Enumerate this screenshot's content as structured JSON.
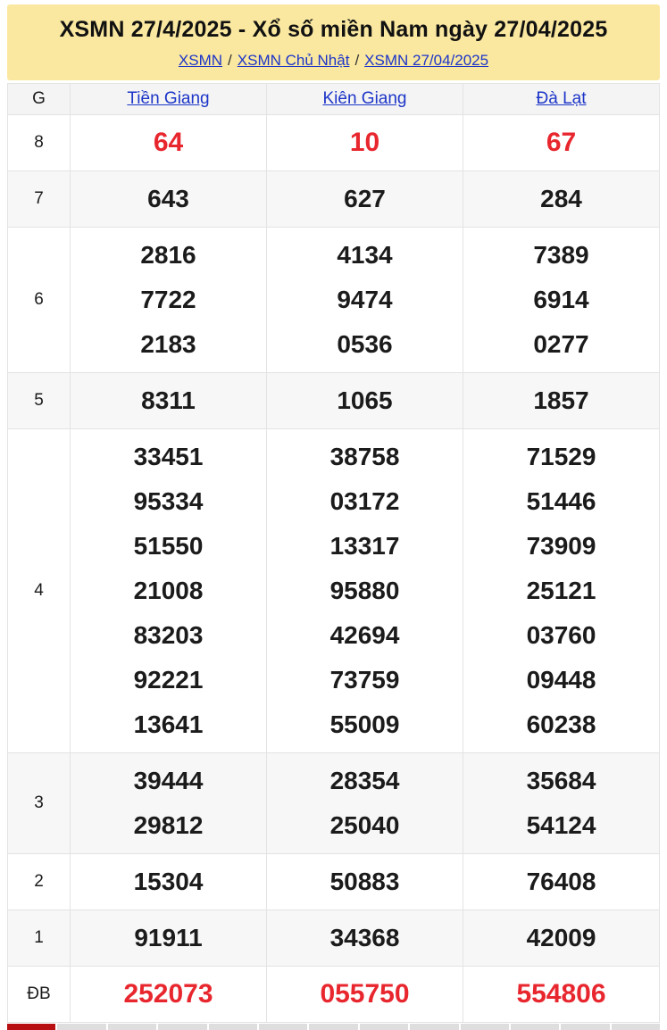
{
  "page": {
    "title": "XSMN 27/4/2025 - Xổ số miền Nam ngày 27/04/2025",
    "breadcrumb": [
      {
        "label": "XSMN"
      },
      {
        "label": "XSMN Chủ Nhật"
      },
      {
        "label": "XSMN 27/04/2025"
      }
    ],
    "breadcrumb_separator": "/"
  },
  "colors": {
    "header_bg": "#FAE8A0",
    "link_blue": "#1d35c8",
    "prize_red": "#e8262e",
    "strip_red": "#b80f12",
    "alt_row_bg": "#f7f7f7",
    "border": "#e3e3e3"
  },
  "table": {
    "g_header": "G",
    "provinces": [
      "Tiền Giang",
      "Kiên Giang",
      "Đà Lạt"
    ],
    "rows": [
      {
        "prize": "8",
        "highlight": true,
        "cells": [
          [
            "64"
          ],
          [
            "10"
          ],
          [
            "67"
          ]
        ]
      },
      {
        "prize": "7",
        "highlight": false,
        "cells": [
          [
            "643"
          ],
          [
            "627"
          ],
          [
            "284"
          ]
        ]
      },
      {
        "prize": "6",
        "highlight": false,
        "cells": [
          [
            "2816",
            "7722",
            "2183"
          ],
          [
            "4134",
            "9474",
            "0536"
          ],
          [
            "7389",
            "6914",
            "0277"
          ]
        ]
      },
      {
        "prize": "5",
        "highlight": false,
        "cells": [
          [
            "8311"
          ],
          [
            "1065"
          ],
          [
            "1857"
          ]
        ]
      },
      {
        "prize": "4",
        "highlight": false,
        "cells": [
          [
            "33451",
            "95334",
            "51550",
            "21008",
            "83203",
            "92221",
            "13641"
          ],
          [
            "38758",
            "03172",
            "13317",
            "95880",
            "42694",
            "73759",
            "55009"
          ],
          [
            "71529",
            "51446",
            "73909",
            "25121",
            "03760",
            "09448",
            "60238"
          ]
        ]
      },
      {
        "prize": "3",
        "highlight": false,
        "cells": [
          [
            "39444",
            "29812"
          ],
          [
            "28354",
            "25040"
          ],
          [
            "35684",
            "54124"
          ]
        ]
      },
      {
        "prize": "2",
        "highlight": false,
        "cells": [
          [
            "15304"
          ],
          [
            "50883"
          ],
          [
            "76408"
          ]
        ]
      },
      {
        "prize": "1",
        "highlight": false,
        "cells": [
          [
            "91911"
          ],
          [
            "34368"
          ],
          [
            "42009"
          ]
        ]
      },
      {
        "prize": "ĐB",
        "highlight": true,
        "cells": [
          [
            "252073"
          ],
          [
            "055750"
          ],
          [
            "554806"
          ]
        ]
      }
    ]
  },
  "bottom_strip": {
    "segments": 13,
    "active_index": 0
  }
}
